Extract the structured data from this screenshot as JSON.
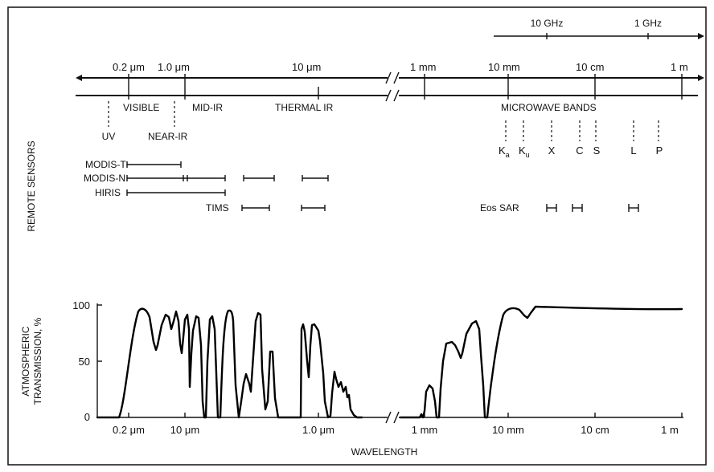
{
  "frequency_axis": {
    "labels": [
      "10 GHz",
      "1 GHz"
    ]
  },
  "wavelength_top_axis": {
    "labels": [
      "0.2 μm",
      "1.0 μm",
      "10 μm",
      "1 mm",
      "10 mm",
      "10 cm",
      "1 m"
    ]
  },
  "regions": {
    "visible": "VISIBLE",
    "mid_ir": "MID-IR",
    "thermal_ir": "THERMAL IR",
    "uv": "UV",
    "near_ir": "NEAR-IR",
    "microwave": "MICROWAVE BANDS"
  },
  "microwave_bands": {
    "ka_main": "K",
    "ka_sub": "a",
    "ku_main": "K",
    "ku_sub": "u",
    "x": "X",
    "c": "C",
    "s": "S",
    "l": "L",
    "p": "P"
  },
  "remote_sensors": {
    "title": "REMOTE SENSORS",
    "modis_t": "MODIS-T",
    "modis_n": "MODIS-N",
    "hiris": "HIRIS",
    "tims": "TIMS",
    "eos_sar": "Eos SAR"
  },
  "chart_data": {
    "type": "line",
    "ylabel_line1": "ATMOSPHERIC",
    "ylabel_line2": "TRANSMISSION, %",
    "xlabel": "WAVELENGTH",
    "yticks": [
      "100",
      "50",
      "0"
    ],
    "xticks": [
      "0.2 μm",
      "10 μm",
      "1.0 μm",
      "1 mm",
      "10 mm",
      "10 cm",
      "1 m"
    ],
    "ylim": [
      0,
      100
    ],
    "grid": false
  }
}
